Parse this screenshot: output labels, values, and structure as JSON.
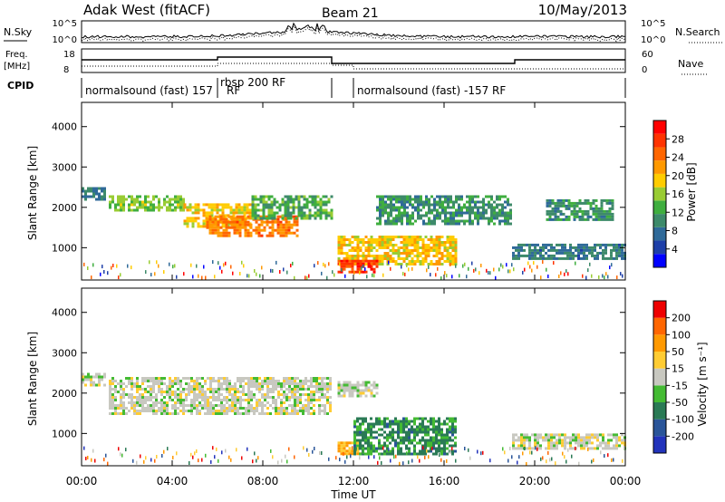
{
  "header": {
    "station": "Adak West (fitACF)",
    "beam": "Beam 21",
    "date": "10/May/2013"
  },
  "noise_panel": {
    "left_label": "N.Sky",
    "right_label": "N.Search",
    "left_ticks": [
      "10^5",
      "10^0"
    ],
    "right_ticks": [
      "10^5",
      "10^0"
    ]
  },
  "freq_panel": {
    "left_label_top": "Freq.",
    "left_label_bottom": "[MHz]",
    "right_label": "Nave",
    "left_ticks": [
      "18",
      "8"
    ],
    "right_ticks": [
      "60",
      "0"
    ]
  },
  "cpid": {
    "label": "CPID",
    "segments": [
      "normalsound (fast) 157",
      "RF",
      "rbsp 200 RF",
      "normalsound (fast) -157 RF"
    ]
  },
  "x_axis": {
    "label": "Time UT",
    "ticks": [
      "00:00",
      "04:00",
      "08:00",
      "12:00",
      "16:00",
      "20:00",
      "00:00"
    ]
  },
  "power_panel": {
    "ylabel": "Slant Range [km]",
    "yticks": [
      "1000",
      "2000",
      "3000",
      "4000"
    ],
    "colorbar_label": "Power [dB]",
    "colorbar_ticks": [
      "28",
      "24",
      "20",
      "16",
      "12",
      "8",
      "4"
    ],
    "colors": [
      "#0000ff",
      "#1e3fa8",
      "#2f6a99",
      "#3d8a6a",
      "#3fae3f",
      "#99cc33",
      "#ffcc00",
      "#ff9900",
      "#ff6600",
      "#ff3300",
      "#ff0000"
    ]
  },
  "velocity_panel": {
    "ylabel": "Slant Range [km]",
    "yticks": [
      "1000",
      "2000",
      "3000",
      "4000"
    ],
    "colorbar_label": "Velocity [m s⁻¹]",
    "colorbar_ticks": [
      "200",
      "100",
      "50",
      "15",
      "-15",
      "-50",
      "-100",
      "-200"
    ],
    "colors": [
      "#2233bb",
      "#2a5599",
      "#2a7a55",
      "#44bb33",
      "#c8c8c0",
      "#ffcc33",
      "#ff9900",
      "#ff6600",
      "#ee0000"
    ]
  },
  "chart_data": {
    "type": "heatmap",
    "x_range_hours_ut": [
      0,
      24
    ],
    "y_range_km": [
      200,
      4600
    ],
    "panels": [
      {
        "name": "Power [dB]",
        "color_range": [
          0,
          30
        ],
        "regions": [
          {
            "t_start": 0.0,
            "t_end": 1.0,
            "range_start": 2200,
            "range_end": 2500,
            "value": 8
          },
          {
            "t_start": 1.2,
            "t_end": 4.5,
            "range_start": 1900,
            "range_end": 2300,
            "value": 14
          },
          {
            "t_start": 4.5,
            "t_end": 7.5,
            "range_start": 1500,
            "range_end": 2100,
            "value": 18
          },
          {
            "t_start": 5.5,
            "t_end": 9.5,
            "range_start": 1300,
            "range_end": 1800,
            "value": 22
          },
          {
            "t_start": 7.5,
            "t_end": 11.0,
            "range_start": 1700,
            "range_end": 2300,
            "value": 12
          },
          {
            "t_start": 11.3,
            "t_end": 16.5,
            "range_start": 600,
            "range_end": 1300,
            "value": 18
          },
          {
            "t_start": 11.3,
            "t_end": 13.0,
            "range_start": 400,
            "range_end": 700,
            "value": 26
          },
          {
            "t_start": 13.0,
            "t_end": 19.0,
            "range_start": 1600,
            "range_end": 2300,
            "value": 10
          },
          {
            "t_start": 19.0,
            "t_end": 24.0,
            "range_start": 700,
            "range_end": 1100,
            "value": 8
          },
          {
            "t_start": 20.5,
            "t_end": 23.5,
            "range_start": 1700,
            "range_end": 2200,
            "value": 10
          }
        ]
      },
      {
        "name": "Velocity [m s-1]",
        "color_range": [
          -200,
          200
        ],
        "regions": [
          {
            "t_start": 0.0,
            "t_end": 1.0,
            "range_start": 2200,
            "range_end": 2500,
            "value": 0
          },
          {
            "t_start": 1.2,
            "t_end": 11.0,
            "range_start": 1500,
            "range_end": 2400,
            "value": 0
          },
          {
            "t_start": 11.3,
            "t_end": 13.0,
            "range_start": 1900,
            "range_end": 2300,
            "value": 0
          },
          {
            "t_start": 11.3,
            "t_end": 12.3,
            "range_start": 500,
            "range_end": 800,
            "value": 60
          },
          {
            "t_start": 12.0,
            "t_end": 16.5,
            "range_start": 500,
            "range_end": 1400,
            "value": -80
          },
          {
            "t_start": 19.0,
            "t_end": 24.0,
            "range_start": 600,
            "range_end": 1000,
            "value": 0
          }
        ]
      }
    ]
  }
}
